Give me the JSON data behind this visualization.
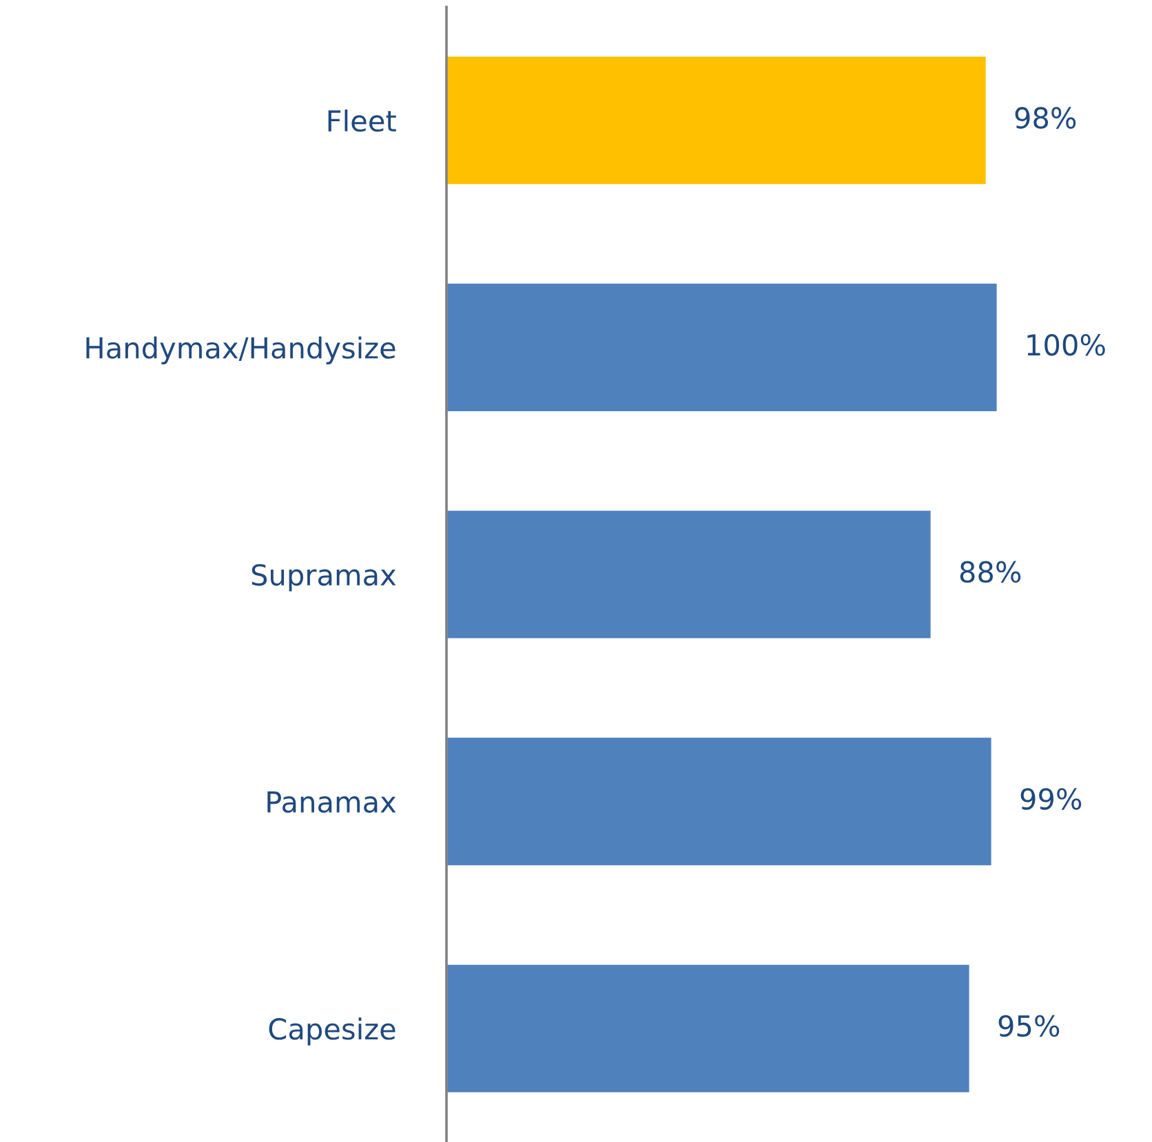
{
  "chart_data": {
    "type": "bar",
    "orientation": "horizontal",
    "categories": [
      "Fleet",
      "Handymax/Handysize",
      "Supramax",
      "Panamax",
      "Capesize"
    ],
    "values": [
      98,
      100,
      88,
      99,
      95
    ],
    "colors": [
      "#ffc000",
      "#4f81bd",
      "#4f81bd",
      "#4f81bd",
      "#4f81bd"
    ],
    "value_labels": [
      "98%",
      "100%",
      "88%",
      "99%",
      "95%"
    ]
  }
}
